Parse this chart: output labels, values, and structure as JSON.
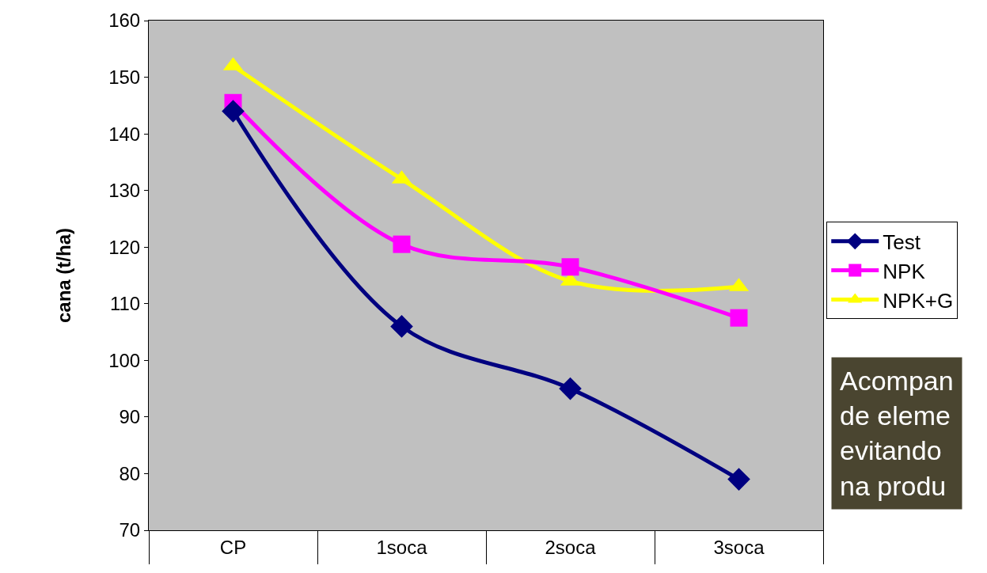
{
  "chart_data": {
    "type": "line",
    "ylabel": "cana (t/ha)",
    "categories": [
      "CP",
      "1soca",
      "2soca",
      "3soca"
    ],
    "series": [
      {
        "name": "Test",
        "color": "#000080",
        "marker": "diamond",
        "values": [
          144,
          106,
          95,
          79
        ]
      },
      {
        "name": "NPK",
        "color": "#ff00ff",
        "marker": "square",
        "values": [
          145.5,
          120.5,
          116.5,
          107.5
        ]
      },
      {
        "name": "NPK+G",
        "color": "#ffff00",
        "marker": "triangle",
        "values": [
          152,
          132,
          114,
          113
        ]
      }
    ],
    "ylim": [
      70,
      160
    ],
    "yticks": [
      70,
      80,
      90,
      100,
      110,
      120,
      130,
      140,
      150,
      160
    ],
    "grid": false,
    "legend": "right",
    "annotations": [
      "Acompan\nde eleme\nevitando\nna produ"
    ]
  }
}
